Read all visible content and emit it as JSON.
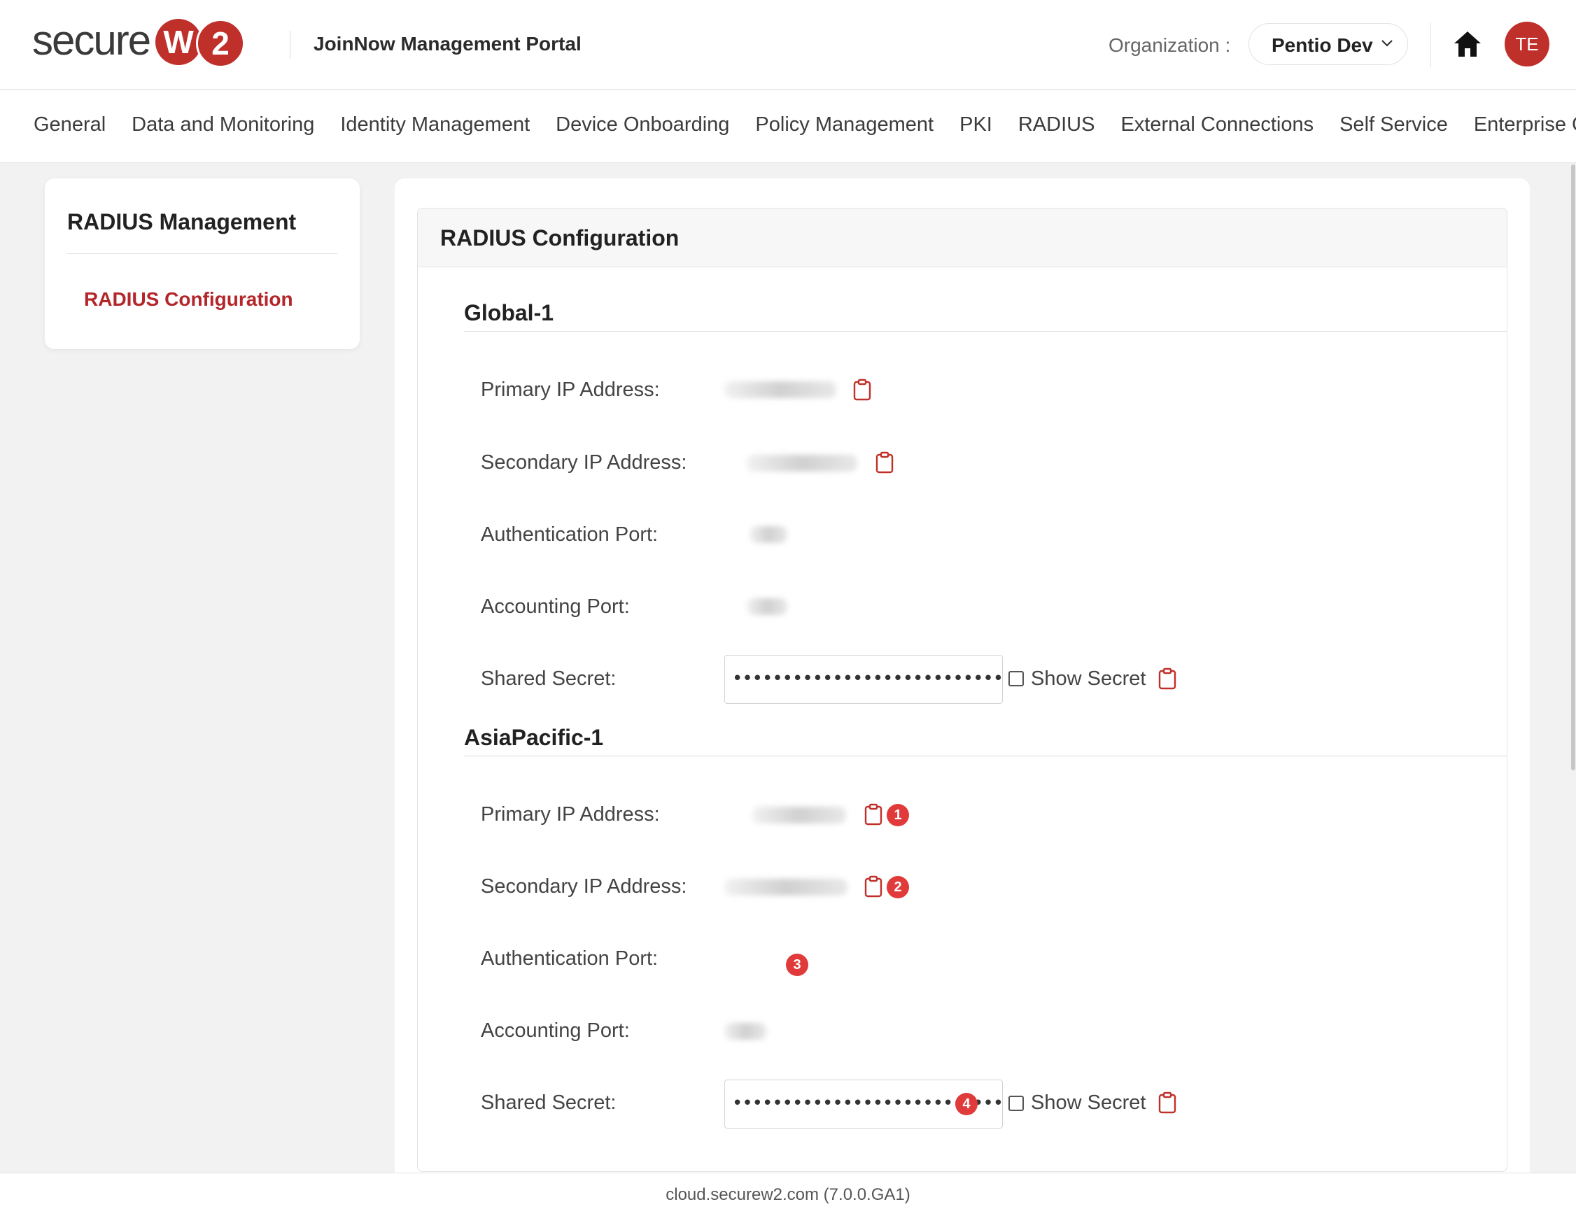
{
  "header": {
    "logo_text": "secure",
    "logo_w": "W",
    "logo_2": "2",
    "portal_title": "JoinNow Management Portal",
    "org_label": "Organization :",
    "org_value": "Pentio Dev",
    "avatar_initials": "TE"
  },
  "nav": {
    "items": [
      "General",
      "Data and Monitoring",
      "Identity Management",
      "Device Onboarding",
      "Policy Management",
      "PKI",
      "RADIUS",
      "External Connections",
      "Self Service",
      "Enterprise Client"
    ]
  },
  "sidebar": {
    "title": "RADIUS Management",
    "link": "RADIUS Configuration"
  },
  "main": {
    "card_title": "RADIUS Configuration",
    "labels": {
      "primary_ip": "Primary IP Address:",
      "secondary_ip": "Secondary IP Address:",
      "auth_port": "Authentication Port:",
      "acct_port": "Accounting Port:",
      "shared_secret": "Shared Secret:",
      "show_secret": "Show Secret"
    },
    "sections": [
      {
        "title": "Global-1",
        "shared_secret_value": "••••••••••••••••••••••••••••••"
      },
      {
        "title": "AsiaPacific-1",
        "shared_secret_value": "••••••••••••••••••••••••••••••",
        "badges": [
          "1",
          "2",
          "3",
          "4"
        ]
      }
    ]
  },
  "footer": {
    "text": "cloud.securew2.com (7.0.0.GA1)"
  },
  "colors": {
    "brand_red": "#c0302a",
    "badge_red": "#e03a3a",
    "link_red": "#b3262a"
  },
  "icons": [
    "chevron-down-icon",
    "home-icon",
    "clipboard-icon"
  ]
}
